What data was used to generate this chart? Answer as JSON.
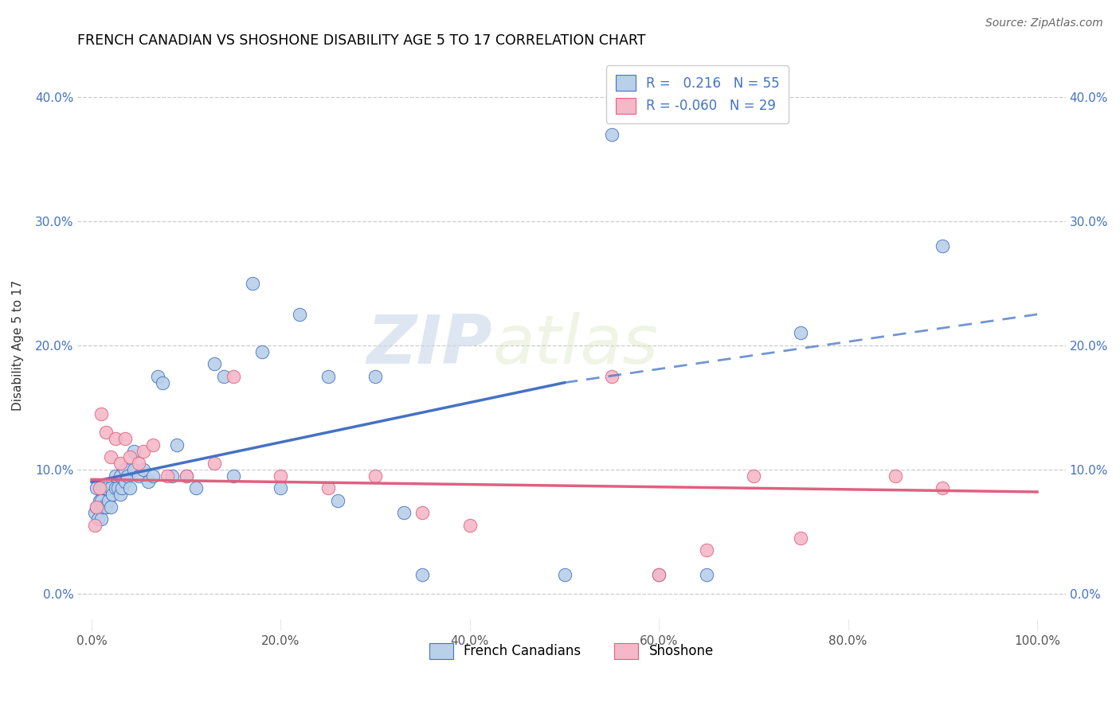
{
  "title": "FRENCH CANADIAN VS SHOSHONE DISABILITY AGE 5 TO 17 CORRELATION CHART",
  "source": "Source: ZipAtlas.com",
  "ylabel": "Disability Age 5 to 17",
  "xlabel_vals": [
    0,
    20,
    40,
    60,
    80,
    100
  ],
  "ytick_vals": [
    0,
    10,
    20,
    30,
    40
  ],
  "ylim": [
    -3,
    43
  ],
  "xlim": [
    -1.5,
    103
  ],
  "legend_blue_r": "0.216",
  "legend_blue_n": "55",
  "legend_pink_r": "-0.060",
  "legend_pink_n": "29",
  "blue_color": "#b8d0e8",
  "pink_color": "#f5b8c8",
  "blue_line_color": "#4472c4",
  "pink_line_color": "#e06080",
  "watermark_zip": "ZIP",
  "watermark_atlas": "atlas",
  "fc_scatter_x": [
    0.3,
    0.5,
    0.5,
    0.7,
    0.8,
    1.0,
    1.0,
    1.2,
    1.2,
    1.5,
    1.5,
    1.8,
    2.0,
    2.0,
    2.2,
    2.5,
    2.5,
    2.8,
    3.0,
    3.0,
    3.2,
    3.5,
    3.5,
    3.8,
    4.0,
    4.5,
    4.5,
    5.0,
    5.5,
    6.0,
    6.5,
    7.0,
    7.5,
    8.5,
    9.0,
    10.0,
    11.0,
    13.0,
    14.0,
    15.0,
    17.0,
    18.0,
    20.0,
    22.0,
    25.0,
    26.0,
    30.0,
    33.0,
    35.0,
    50.0,
    55.0,
    60.0,
    65.0,
    75.0,
    90.0
  ],
  "fc_scatter_y": [
    6.5,
    7.0,
    8.5,
    6.0,
    7.5,
    6.0,
    7.5,
    7.0,
    8.5,
    7.0,
    8.5,
    7.5,
    7.0,
    8.5,
    8.0,
    8.5,
    9.5,
    8.5,
    8.0,
    9.5,
    8.5,
    9.0,
    10.0,
    9.5,
    8.5,
    10.0,
    11.5,
    9.5,
    10.0,
    9.0,
    9.5,
    17.5,
    17.0,
    9.5,
    12.0,
    9.5,
    8.5,
    18.5,
    17.5,
    9.5,
    25.0,
    19.5,
    8.5,
    22.5,
    17.5,
    7.5,
    17.5,
    6.5,
    1.5,
    1.5,
    37.0,
    1.5,
    1.5,
    21.0,
    28.0
  ],
  "sh_scatter_x": [
    0.3,
    0.5,
    0.8,
    1.0,
    1.5,
    2.0,
    2.5,
    3.0,
    3.5,
    4.0,
    5.0,
    5.5,
    6.5,
    8.0,
    10.0,
    13.0,
    15.0,
    20.0,
    25.0,
    30.0,
    35.0,
    40.0,
    55.0,
    60.0,
    65.0,
    70.0,
    75.0,
    85.0,
    90.0
  ],
  "sh_scatter_y": [
    5.5,
    7.0,
    8.5,
    14.5,
    13.0,
    11.0,
    12.5,
    10.5,
    12.5,
    11.0,
    10.5,
    11.5,
    12.0,
    9.5,
    9.5,
    10.5,
    17.5,
    9.5,
    8.5,
    9.5,
    6.5,
    5.5,
    17.5,
    1.5,
    3.5,
    9.5,
    4.5,
    9.5,
    8.5
  ],
  "blue_line_x0": 0,
  "blue_line_y0": 9.0,
  "blue_line_x1": 50,
  "blue_line_y1": 17.0,
  "blue_dash_x0": 50,
  "blue_dash_y0": 17.0,
  "blue_dash_x1": 100,
  "blue_dash_y1": 22.5,
  "pink_line_y0": 9.2,
  "pink_line_y1": 8.2
}
